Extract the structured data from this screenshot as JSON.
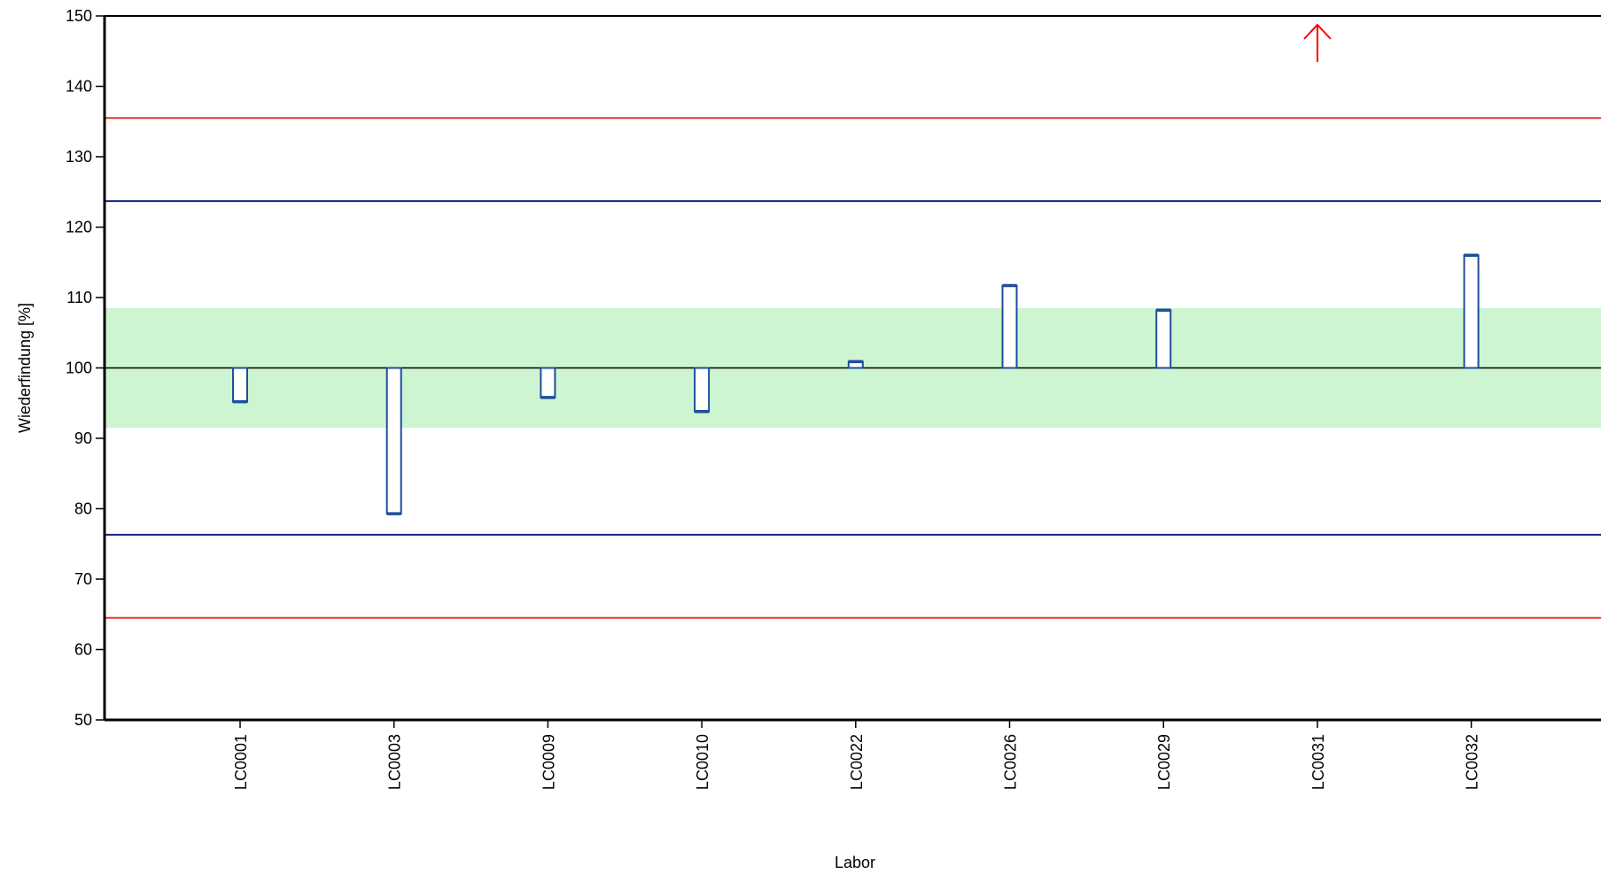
{
  "chart_data": {
    "type": "bar",
    "xlabel": "Labor",
    "ylabel": "Wiederfindung [%]",
    "ylim": [
      50,
      150
    ],
    "yticks": [
      50,
      60,
      70,
      80,
      90,
      100,
      110,
      120,
      130,
      140,
      150
    ],
    "baseline": 100,
    "categories": [
      "LC0001",
      "LC0003",
      "LC0009",
      "LC0010",
      "LC0022",
      "LC0026",
      "LC0029",
      "LC0031",
      "LC0032"
    ],
    "values": [
      95.2,
      79.3,
      95.8,
      93.8,
      100.9,
      111.7,
      108.2,
      150,
      116.0
    ],
    "out_of_range": [
      "LC0031"
    ],
    "tolerance_band": [
      91.5,
      108.5
    ],
    "warning_limits": [
      76.3,
      123.7
    ],
    "action_limits": [
      64.5,
      135.5
    ],
    "colors": {
      "bar_stroke": "#1f4e99",
      "band_fill": "#cdf5d1",
      "warning_line": "#1a237e",
      "action_line": "#e53935",
      "out_of_range_marker": "#ff0000"
    }
  }
}
